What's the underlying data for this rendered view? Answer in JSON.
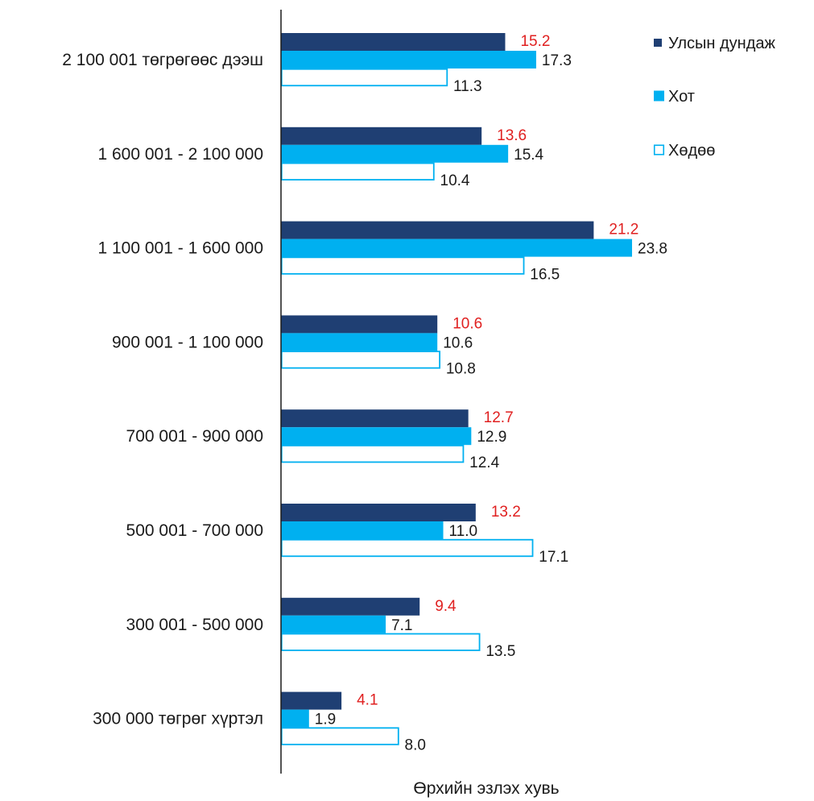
{
  "chart_data": {
    "type": "bar",
    "orientation": "horizontal",
    "title": "",
    "xlabel": "Өрхийн эзлэх хувь",
    "ylabel": "",
    "xlim": [
      0,
      25
    ],
    "grid": false,
    "legend_position": "top-right",
    "categories": [
      "2 100 001 төгрөгөөс дээш",
      "1 600 001 - 2 100 000",
      "1 100 001 - 1 600 000",
      "900 001 - 1 100 000",
      "700 001 - 900 000",
      "500 001 - 700 000",
      "300 001 - 500 000",
      "300 000 төгрөг хүртэл"
    ],
    "series": [
      {
        "name": "Улсын дундаж",
        "color": "#1f3f73",
        "style": "filled",
        "label_color": "#e02020",
        "values": [
          15.2,
          13.6,
          21.2,
          10.6,
          12.7,
          13.2,
          9.4,
          4.1
        ],
        "labels": [
          "15.2",
          "13.6",
          "21.2",
          "10.6",
          "12.7",
          "13.2",
          "9.4",
          "4.1"
        ]
      },
      {
        "name": "Хот",
        "color": "#00b0f0",
        "style": "filled",
        "label_color": "#1a1a1a",
        "values": [
          17.3,
          15.4,
          23.8,
          10.6,
          12.9,
          11.0,
          7.1,
          1.9
        ],
        "labels": [
          "17.3",
          "15.4",
          "23.8",
          "10.6",
          "12.9",
          "11.0",
          "7.1",
          "1.9"
        ]
      },
      {
        "name": "Хөдөө",
        "color": "#00b0f0",
        "style": "outline",
        "label_color": "#1a1a1a",
        "values": [
          11.3,
          10.4,
          16.5,
          10.8,
          12.4,
          17.1,
          13.5,
          8.0
        ],
        "labels": [
          "11.3",
          "10.4",
          "16.5",
          "10.8",
          "12.4",
          "17.1",
          "13.5",
          "8.0"
        ]
      }
    ]
  }
}
